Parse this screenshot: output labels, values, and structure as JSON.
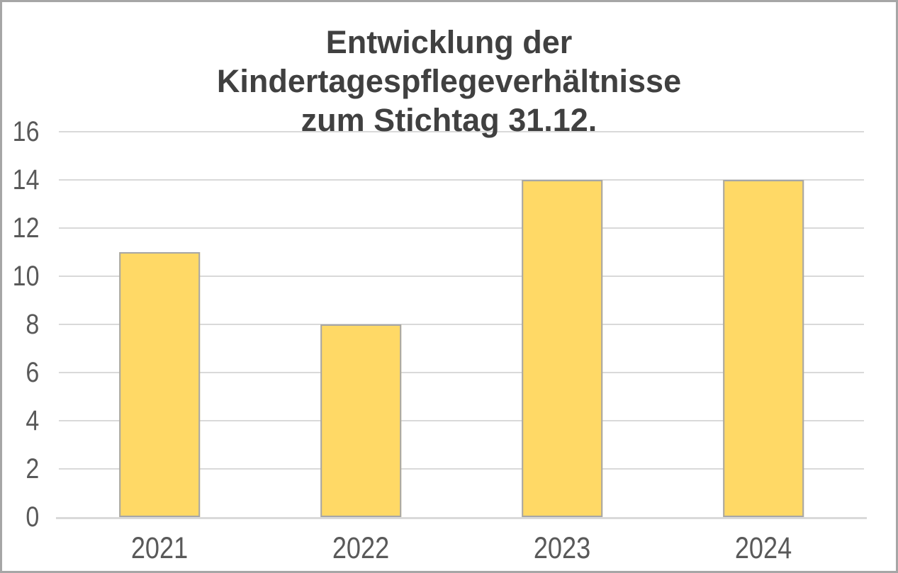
{
  "chart_data": {
    "type": "bar",
    "title": "Entwicklung der\nKindertagespflegeverhältnisse\nzum Stichtag 31.12.",
    "categories": [
      "2021",
      "2022",
      "2023",
      "2024"
    ],
    "values": [
      11,
      8,
      14,
      14
    ],
    "ylim": [
      0,
      16
    ],
    "y_ticks": [
      0,
      2,
      4,
      6,
      8,
      10,
      12,
      14,
      16
    ],
    "ytick_step": 2,
    "grid": true,
    "legend": false,
    "xlabel": "",
    "ylabel": "",
    "bar_gap_ratio": 0.4,
    "colors": {
      "bar_fill": "#FFD966",
      "bar_border": "#A6A6A6",
      "gridline": "#D9D9D9",
      "axis_line": "#D9D9D9",
      "tick_label": "#595959",
      "title": "#404040",
      "frame_border": "#A6A6A6",
      "background": "#FFFFFF"
    }
  }
}
